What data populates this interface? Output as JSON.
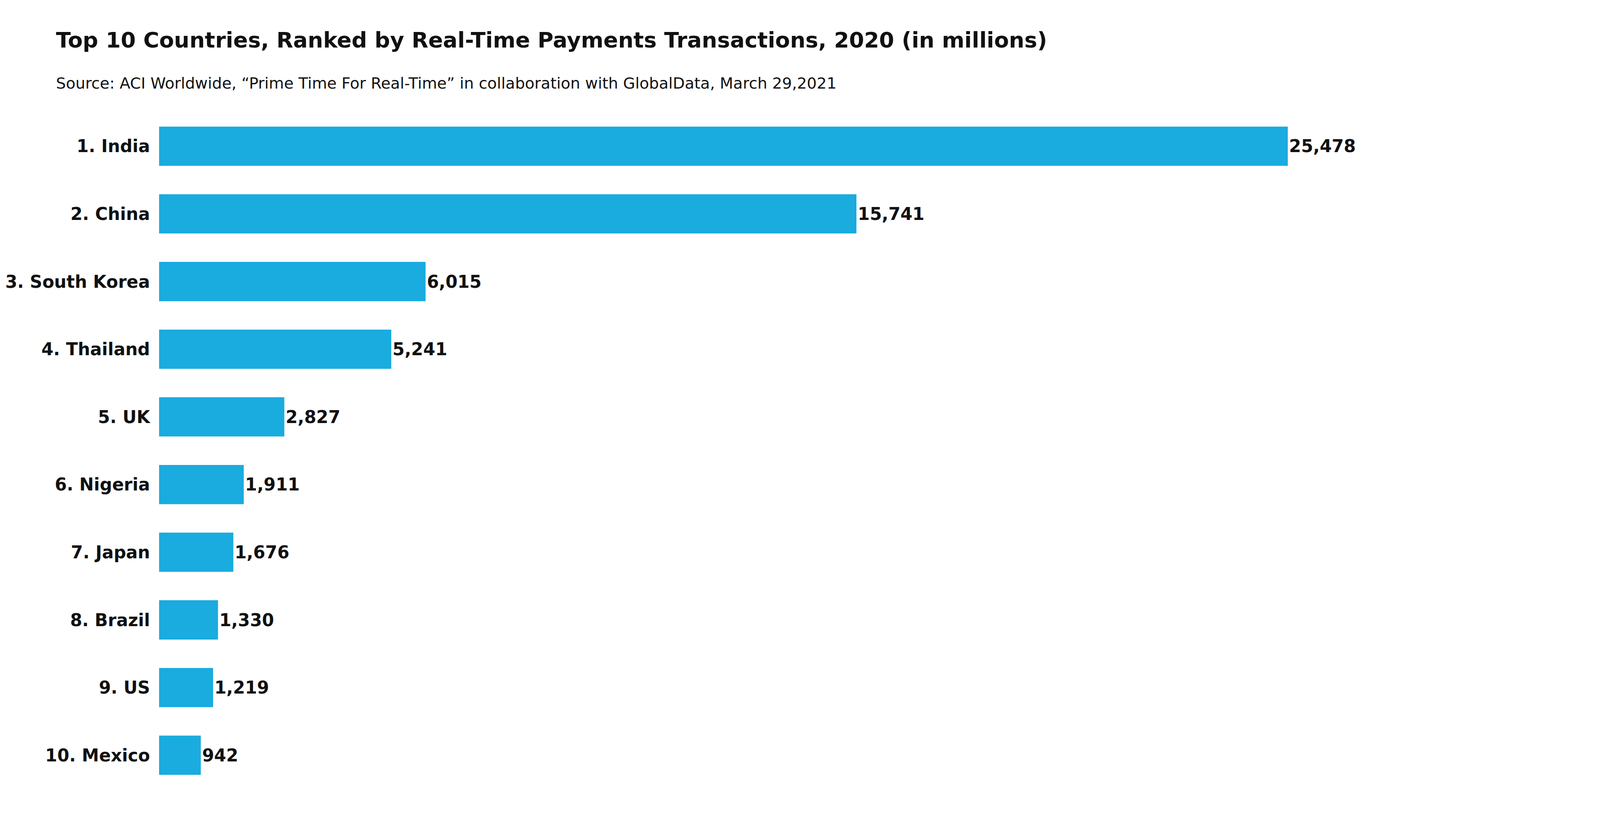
{
  "chart_data": {
    "type": "bar",
    "orientation": "horizontal",
    "title": "Top 10 Countries, Ranked by Real-Time Payments Transactions, 2020 (in millions)",
    "subtitle": "Source: ACI Worldwide, “Prime Time For Real-Time” in collaboration with GlobalData, March 29,2021",
    "categories": [
      "1. India",
      "2. China",
      "3. South Korea",
      "4. Thailand",
      "5. UK",
      "6. Nigeria",
      "7. Japan",
      "8. Brazil",
      "9. US",
      "10. Mexico"
    ],
    "values": [
      25478,
      15741,
      6015,
      5241,
      2827,
      1911,
      1676,
      1330,
      1219,
      942
    ],
    "value_labels": [
      "25,478",
      "15,741",
      "6,015",
      "5,241",
      "2,827",
      "1,911",
      "1,676",
      "1,330",
      "1,219",
      "942"
    ],
    "data_labels": true,
    "color": "#1AABDF",
    "xlim": [
      0,
      30573.6
    ],
    "grid": false,
    "tick_labels": "y"
  }
}
